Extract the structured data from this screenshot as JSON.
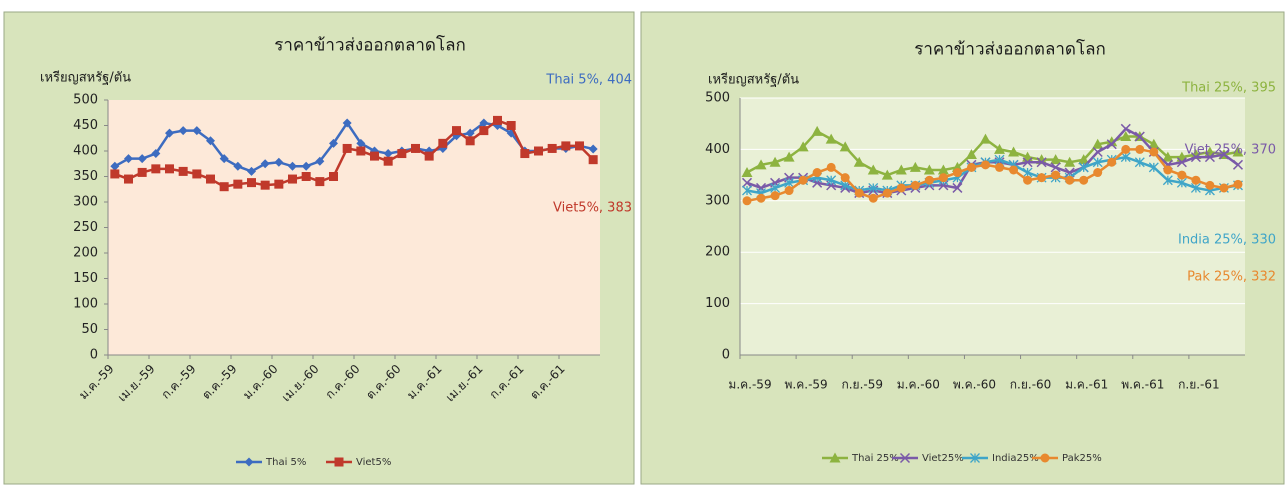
{
  "chart_data": [
    {
      "type": "line",
      "title": "ราคาข้าวส่งออกตลาดโลก",
      "y_label": "เหรียญสหรัฐ/ตัน",
      "categories": [
        "ม.ค.-59",
        null,
        null,
        "เม.ย.-59",
        null,
        null,
        "ก.ค.-59",
        null,
        null,
        "ต.ค.-59",
        null,
        null,
        "ม.ค.-60",
        null,
        null,
        "เม.ย.-60",
        null,
        null,
        "ก.ค.-60",
        null,
        null,
        "ต.ค.-60",
        null,
        null,
        "ม.ค.-61",
        null,
        null,
        "เม.ย.-61",
        null,
        null,
        "ก.ค.-61",
        null,
        null,
        "ต.ค.-61",
        null,
        null
      ],
      "ylim": [
        0,
        500
      ],
      "yticks": [
        0,
        50,
        100,
        150,
        200,
        250,
        300,
        350,
        400,
        450,
        500
      ],
      "grid": false,
      "series": [
        {
          "name": "Thai 5%",
          "color": "#3d6cc0",
          "marker": "diamond",
          "end_label": "Thai 5%, 404",
          "values": [
            370,
            385,
            385,
            395,
            435,
            440,
            440,
            420,
            385,
            370,
            360,
            375,
            378,
            370,
            370,
            380,
            415,
            455,
            415,
            400,
            395,
            400,
            405,
            400,
            405,
            430,
            435,
            455,
            450,
            435,
            400,
            400,
            405,
            405,
            410,
            404
          ]
        },
        {
          "name": "Viet5%",
          "color": "#c0392b",
          "marker": "square",
          "end_label": "Viet5%, 383",
          "values": [
            355,
            345,
            358,
            365,
            365,
            360,
            355,
            345,
            330,
            335,
            338,
            333,
            335,
            345,
            350,
            340,
            350,
            405,
            400,
            390,
            380,
            395,
            405,
            390,
            415,
            440,
            420,
            440,
            460,
            450,
            395,
            400,
            405,
            410,
            410,
            383
          ]
        }
      ]
    },
    {
      "type": "line",
      "title": "ราคาข้าวส่งออกตลาดโลก",
      "y_label": "เหรียญสหรัฐ/ตัน",
      "categories": [
        "ม.ค.-59",
        null,
        null,
        null,
        "พ.ค.-59",
        null,
        null,
        null,
        "ก.ย.-59",
        null,
        null,
        null,
        "ม.ค.-60",
        null,
        null,
        null,
        "พ.ค.-60",
        null,
        null,
        null,
        "ก.ย.-60",
        null,
        null,
        null,
        "ม.ค.-61",
        null,
        null,
        null,
        "พ.ค.-61",
        null,
        null,
        null,
        "ก.ย.-61",
        null,
        null,
        null
      ],
      "ylim": [
        0,
        500
      ],
      "yticks": [
        0,
        100,
        200,
        300,
        400,
        500
      ],
      "grid": true,
      "series": [
        {
          "name": "Thai 25%",
          "color": "#8db340",
          "marker": "triangle",
          "end_label": "Thai 25%, 395",
          "values": [
            355,
            370,
            375,
            385,
            405,
            435,
            420,
            405,
            375,
            360,
            350,
            360,
            365,
            360,
            360,
            365,
            390,
            420,
            400,
            395,
            385,
            380,
            380,
            375,
            380,
            410,
            415,
            425,
            425,
            410,
            385,
            385,
            390,
            395,
            390,
            395
          ]
        },
        {
          "name": "Viet25%",
          "color": "#7a5aa8",
          "marker": "cross",
          "end_label": "Viet 25%, 370",
          "values": [
            335,
            325,
            335,
            345,
            345,
            335,
            330,
            325,
            315,
            320,
            315,
            320,
            325,
            330,
            330,
            325,
            370,
            375,
            375,
            370,
            375,
            375,
            365,
            355,
            365,
            395,
            410,
            440,
            425,
            395,
            370,
            375,
            385,
            385,
            390,
            370
          ]
        },
        {
          "name": "India25%",
          "color": "#3fa5c8",
          "marker": "star",
          "end_label": "India 25%, 330",
          "values": [
            320,
            315,
            325,
            335,
            340,
            345,
            340,
            330,
            320,
            325,
            320,
            330,
            330,
            335,
            340,
            345,
            365,
            375,
            380,
            370,
            355,
            345,
            345,
            345,
            365,
            375,
            380,
            385,
            375,
            365,
            340,
            335,
            325,
            320,
            325,
            330
          ]
        },
        {
          "name": "Pak25%",
          "color": "#e8892f",
          "marker": "circle",
          "end_label": "Pak 25%, 332",
          "values": [
            300,
            305,
            310,
            320,
            340,
            355,
            365,
            345,
            315,
            305,
            315,
            325,
            330,
            340,
            345,
            355,
            365,
            370,
            365,
            360,
            340,
            345,
            350,
            340,
            340,
            355,
            375,
            400,
            400,
            395,
            360,
            350,
            340,
            330,
            325,
            332
          ]
        }
      ]
    }
  ]
}
